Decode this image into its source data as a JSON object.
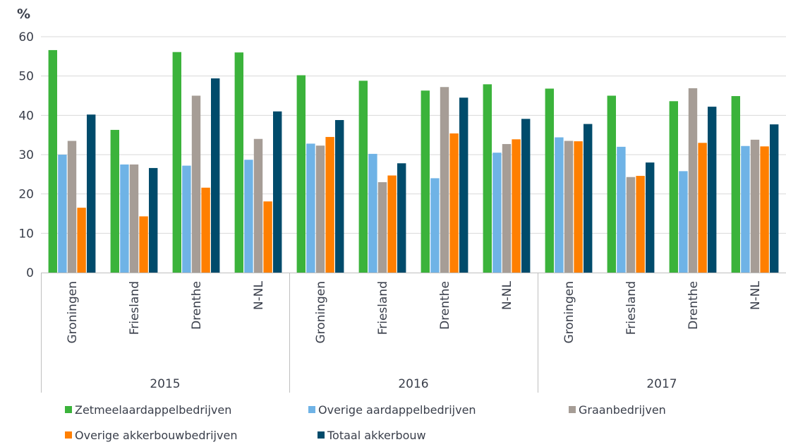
{
  "chart_data": {
    "type": "bar",
    "ylabel": "%",
    "ylim": [
      0,
      60
    ],
    "yticks": [
      0,
      10,
      20,
      30,
      40,
      50,
      60
    ],
    "grid": true,
    "legend_position": "bottom",
    "groups": [
      {
        "label": "2015",
        "categories": [
          "Groningen",
          "Friesland",
          "Drenthe",
          "N-NL"
        ]
      },
      {
        "label": "2016",
        "categories": [
          "Groningen",
          "Friesland",
          "Drenthe",
          "N-NL"
        ]
      },
      {
        "label": "2017",
        "categories": [
          "Groningen",
          "Friesland",
          "Drenthe",
          "N-NL"
        ]
      }
    ],
    "series": [
      {
        "name": "Zetmeelaardappelbedrijven",
        "color": "#3bb33b",
        "values": [
          56.6,
          36.3,
          56.1,
          56.0,
          50.2,
          48.8,
          46.3,
          47.9,
          46.8,
          45.0,
          43.6,
          44.9
        ]
      },
      {
        "name": "Overige aardappelbedrijven",
        "color": "#6fb3e6",
        "values": [
          30.0,
          27.5,
          27.2,
          28.7,
          32.8,
          30.2,
          24.0,
          30.5,
          34.4,
          32.0,
          25.8,
          32.2
        ]
      },
      {
        "name": "Graanbedrijven",
        "color": "#a69d96",
        "values": [
          33.5,
          27.5,
          45.0,
          34.0,
          32.3,
          23.0,
          47.2,
          32.7,
          33.5,
          24.3,
          46.9,
          33.8
        ]
      },
      {
        "name": "Overige akkerbouwbedrijven",
        "color": "#ff7f00",
        "values": [
          16.5,
          14.3,
          21.6,
          18.1,
          34.5,
          24.7,
          35.4,
          33.9,
          33.4,
          24.6,
          33.0,
          32.1
        ]
      },
      {
        "name": "Totaal akkerbouw",
        "color": "#004b6b",
        "values": [
          40.2,
          26.6,
          49.4,
          41.0,
          38.8,
          27.8,
          44.5,
          39.1,
          37.8,
          28.0,
          42.2,
          37.7
        ]
      }
    ]
  }
}
